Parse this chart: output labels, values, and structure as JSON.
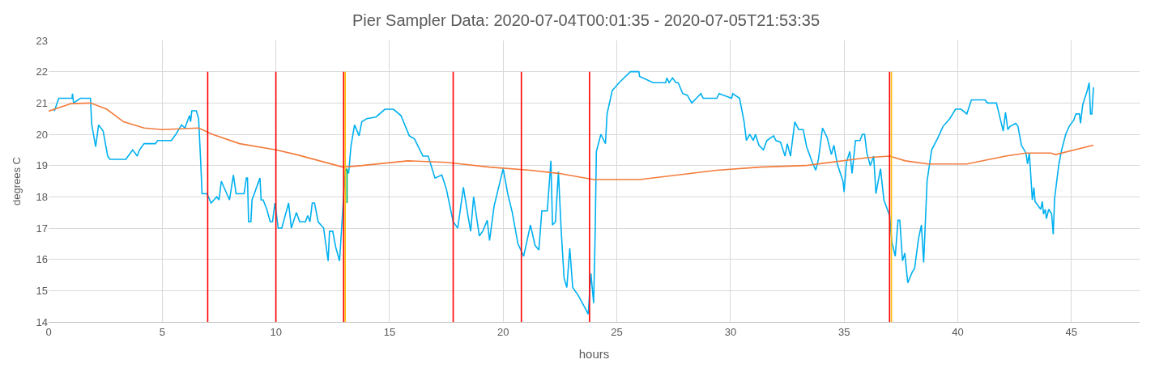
{
  "chart_data": {
    "type": "line",
    "title": "Pier Sampler Data: 2020-07-04T00:01:35 - 2020-07-05T21:53:35",
    "xlabel": "hours",
    "ylabel": "degrees C",
    "xlim": [
      0,
      48
    ],
    "xticks": [
      0,
      5,
      10,
      15,
      20,
      25,
      30,
      35,
      40,
      45
    ],
    "ylim": [
      14,
      23
    ],
    "yticks": [
      14,
      15,
      16,
      17,
      18,
      19,
      20,
      21,
      22,
      23
    ],
    "grid": true,
    "marker": "none",
    "line_style": "solid",
    "series": [
      {
        "color": "#00b0f0",
        "x": [
          0.25,
          0.45,
          1.03,
          1.05,
          1.1,
          1.4,
          1.84,
          1.9,
          2.07,
          2.2,
          2.4,
          2.6,
          2.7,
          3.4,
          3.5,
          3.7,
          3.9,
          4.0,
          4.2,
          4.7,
          4.8,
          5.4,
          5.6,
          5.85,
          6.0,
          6.1,
          6.2,
          6.25,
          6.3,
          6.5,
          6.6,
          6.7,
          6.75,
          6.97,
          7.15,
          7.4,
          7.5,
          7.6,
          7.96,
          8.13,
          8.25,
          8.6,
          8.7,
          8.75,
          8.8,
          8.9,
          8.95,
          9.3,
          9.35,
          9.44,
          9.6,
          9.75,
          9.85,
          9.96,
          10.1,
          10.26,
          10.56,
          10.68,
          10.9,
          11.05,
          11.3,
          11.4,
          11.5,
          11.6,
          11.7,
          11.86,
          12.1,
          12.3,
          12.36,
          12.5,
          12.63,
          12.8,
          13.06,
          13.2,
          13.3,
          13.46,
          13.66,
          13.78,
          14.0,
          14.4,
          14.8,
          15.17,
          15.5,
          15.87,
          16.1,
          16.47,
          16.7,
          16.85,
          17.0,
          17.3,
          17.5,
          17.8,
          18.0,
          18.25,
          18.45,
          18.57,
          18.7,
          18.95,
          19.1,
          19.3,
          19.4,
          19.6,
          19.85,
          20.0,
          20.2,
          20.4,
          20.65,
          20.9,
          21.2,
          21.4,
          21.57,
          21.7,
          21.94,
          22.1,
          22.17,
          22.3,
          22.43,
          22.55,
          22.68,
          22.8,
          22.93,
          23.06,
          23.3,
          23.56,
          23.74,
          23.86,
          23.98,
          24.05,
          24.1,
          24.3,
          24.5,
          24.57,
          24.8,
          25.1,
          25.6,
          25.97,
          26.0,
          26.6,
          27.15,
          27.2,
          27.3,
          27.45,
          27.6,
          27.7,
          27.9,
          28.1,
          28.3,
          28.5,
          28.7,
          28.8,
          29.4,
          29.5,
          30.05,
          30.1,
          30.4,
          30.6,
          30.7,
          30.85,
          31.0,
          31.1,
          31.25,
          31.45,
          31.6,
          31.9,
          32.0,
          32.2,
          32.4,
          32.5,
          32.64,
          32.83,
          33.0,
          33.2,
          33.35,
          33.6,
          33.75,
          33.87,
          34.05,
          34.25,
          34.44,
          34.55,
          34.7,
          34.95,
          35.0,
          35.1,
          35.25,
          35.35,
          35.5,
          35.7,
          35.8,
          35.9,
          36.0,
          36.15,
          36.3,
          36.4,
          36.6,
          36.75,
          37.0,
          37.1,
          37.25,
          37.37,
          37.45,
          37.57,
          37.67,
          37.8,
          38.0,
          38.1,
          38.27,
          38.4,
          38.5,
          38.65,
          38.85,
          39.1,
          39.35,
          39.65,
          39.9,
          40.15,
          40.4,
          40.6,
          41.2,
          41.3,
          41.7,
          41.8,
          42.0,
          42.1,
          42.2,
          42.3,
          42.55,
          42.65,
          42.8,
          43.0,
          43.07,
          43.15,
          43.28,
          43.35,
          43.4,
          43.65,
          43.72,
          43.77,
          43.85,
          43.9,
          44.0,
          44.13,
          44.2,
          44.26,
          44.32,
          44.45,
          44.57,
          44.75,
          44.9,
          45.1,
          45.2,
          45.35,
          45.4,
          45.5,
          45.7,
          45.78,
          45.84,
          45.9,
          45.97
        ],
        "values": [
          20.74,
          21.15,
          21.15,
          21.3,
          21.0,
          21.15,
          21.15,
          20.3,
          19.6,
          20.3,
          20.1,
          19.3,
          19.2,
          19.2,
          19.3,
          19.5,
          19.3,
          19.5,
          19.7,
          19.7,
          19.8,
          19.8,
          20.0,
          20.3,
          20.2,
          20.4,
          20.6,
          20.4,
          20.75,
          20.75,
          20.5,
          19.0,
          18.1,
          18.1,
          17.8,
          18.0,
          17.9,
          18.5,
          17.9,
          18.7,
          18.1,
          18.1,
          18.6,
          18.6,
          17.2,
          17.2,
          17.9,
          18.6,
          17.9,
          17.9,
          17.6,
          17.2,
          17.2,
          17.8,
          17.0,
          17.0,
          17.8,
          17.0,
          17.5,
          17.2,
          17.2,
          17.4,
          17.2,
          17.8,
          17.8,
          17.2,
          17.0,
          15.95,
          16.9,
          16.9,
          16.4,
          15.95,
          18.9,
          18.75,
          19.6,
          20.3,
          19.95,
          20.4,
          20.5,
          20.55,
          20.8,
          20.8,
          20.6,
          19.95,
          19.85,
          19.3,
          19.3,
          18.95,
          18.6,
          18.7,
          18.25,
          17.2,
          17.0,
          18.3,
          17.4,
          16.9,
          18.0,
          16.75,
          16.9,
          17.25,
          16.6,
          17.7,
          18.45,
          18.9,
          18.1,
          17.5,
          16.5,
          16.1,
          17.1,
          16.45,
          16.3,
          17.55,
          17.55,
          19.15,
          17.1,
          17.2,
          18.8,
          16.95,
          15.4,
          15.1,
          16.35,
          15.1,
          14.85,
          14.5,
          14.25,
          15.55,
          14.6,
          16.95,
          19.45,
          20.0,
          19.7,
          20.65,
          21.4,
          21.65,
          22.0,
          22.0,
          21.85,
          21.65,
          21.65,
          21.8,
          21.65,
          21.8,
          21.65,
          21.65,
          21.3,
          21.25,
          21.0,
          21.15,
          21.3,
          21.15,
          21.15,
          21.3,
          21.15,
          21.3,
          21.15,
          20.4,
          19.8,
          20.0,
          19.8,
          20.0,
          19.65,
          19.5,
          19.8,
          19.95,
          19.8,
          19.75,
          19.3,
          19.7,
          19.3,
          20.4,
          20.15,
          20.15,
          19.6,
          19.1,
          18.85,
          19.2,
          20.2,
          19.9,
          19.35,
          19.65,
          19.05,
          18.5,
          18.15,
          19.1,
          19.45,
          18.75,
          19.8,
          19.8,
          20.0,
          20.0,
          19.4,
          19.0,
          19.3,
          18.1,
          18.9,
          17.9,
          17.4,
          16.55,
          16.1,
          17.25,
          17.25,
          15.95,
          16.2,
          15.25,
          15.6,
          15.7,
          16.65,
          17.1,
          15.9,
          18.5,
          19.5,
          19.85,
          20.25,
          20.5,
          20.8,
          20.8,
          20.65,
          21.1,
          21.1,
          21.0,
          21.0,
          20.7,
          20.1,
          20.7,
          20.15,
          20.25,
          20.35,
          20.25,
          19.65,
          19.4,
          19.05,
          19.4,
          17.9,
          18.3,
          17.85,
          17.6,
          17.85,
          17.45,
          17.6,
          17.3,
          17.6,
          17.45,
          16.8,
          17.95,
          18.3,
          19.05,
          19.5,
          20.0,
          20.25,
          20.45,
          20.65,
          20.65,
          20.35,
          20.95,
          21.4,
          21.65,
          20.65,
          20.65,
          21.5
        ]
      },
      {
        "color": "#f37b3b",
        "x": [
          0,
          1.0,
          1.84,
          2.56,
          3.3,
          4.2,
          5.0,
          6.6,
          7.2,
          8.4,
          10.0,
          10.9,
          12.95,
          13.8,
          15.8,
          17.5,
          19.4,
          21.2,
          22.43,
          23.98,
          26.0,
          27.7,
          29.4,
          31.3,
          33.3,
          36.0,
          37.0,
          37.7,
          38.7,
          40.4,
          42.1,
          43.0,
          44.1,
          44.3,
          45.97
        ],
        "values": [
          20.74,
          20.98,
          21.0,
          20.8,
          20.4,
          20.2,
          20.15,
          20.2,
          20.0,
          19.7,
          19.5,
          19.35,
          18.95,
          19.0,
          19.15,
          19.1,
          18.95,
          18.85,
          18.75,
          18.55,
          18.55,
          18.7,
          18.85,
          18.95,
          19.0,
          19.25,
          19.3,
          19.15,
          19.05,
          19.05,
          19.3,
          19.4,
          19.4,
          19.35,
          19.65
        ]
      },
      {
        "color": "#ffc000",
        "x": [
          13.05,
          13.05
        ],
        "values": [
          14,
          22
        ]
      },
      {
        "color": "#ffc000",
        "x": [
          37.08,
          37.08
        ],
        "values": [
          14,
          22
        ]
      },
      {
        "color": "#ff0000",
        "x": [
          7.0,
          7.0
        ],
        "values": [
          14,
          22
        ]
      },
      {
        "color": "#ff0000",
        "x": [
          10.0,
          10.0
        ],
        "values": [
          14,
          22
        ]
      },
      {
        "color": "#ff0000",
        "x": [
          12.98,
          12.98
        ],
        "values": [
          14,
          22
        ]
      },
      {
        "color": "#ff0000",
        "x": [
          17.8,
          17.8
        ],
        "values": [
          14,
          22
        ]
      },
      {
        "color": "#ff0000",
        "x": [
          20.8,
          20.8
        ],
        "values": [
          14,
          22
        ]
      },
      {
        "color": "#ff0000",
        "x": [
          23.8,
          23.8
        ],
        "values": [
          14,
          22
        ]
      },
      {
        "color": "#ff0000",
        "x": [
          37.0,
          37.0
        ],
        "values": [
          14,
          22
        ]
      },
      {
        "color": "#00b050",
        "x": [
          13.13,
          13.13
        ],
        "values": [
          18.9,
          17.8
        ]
      }
    ]
  }
}
